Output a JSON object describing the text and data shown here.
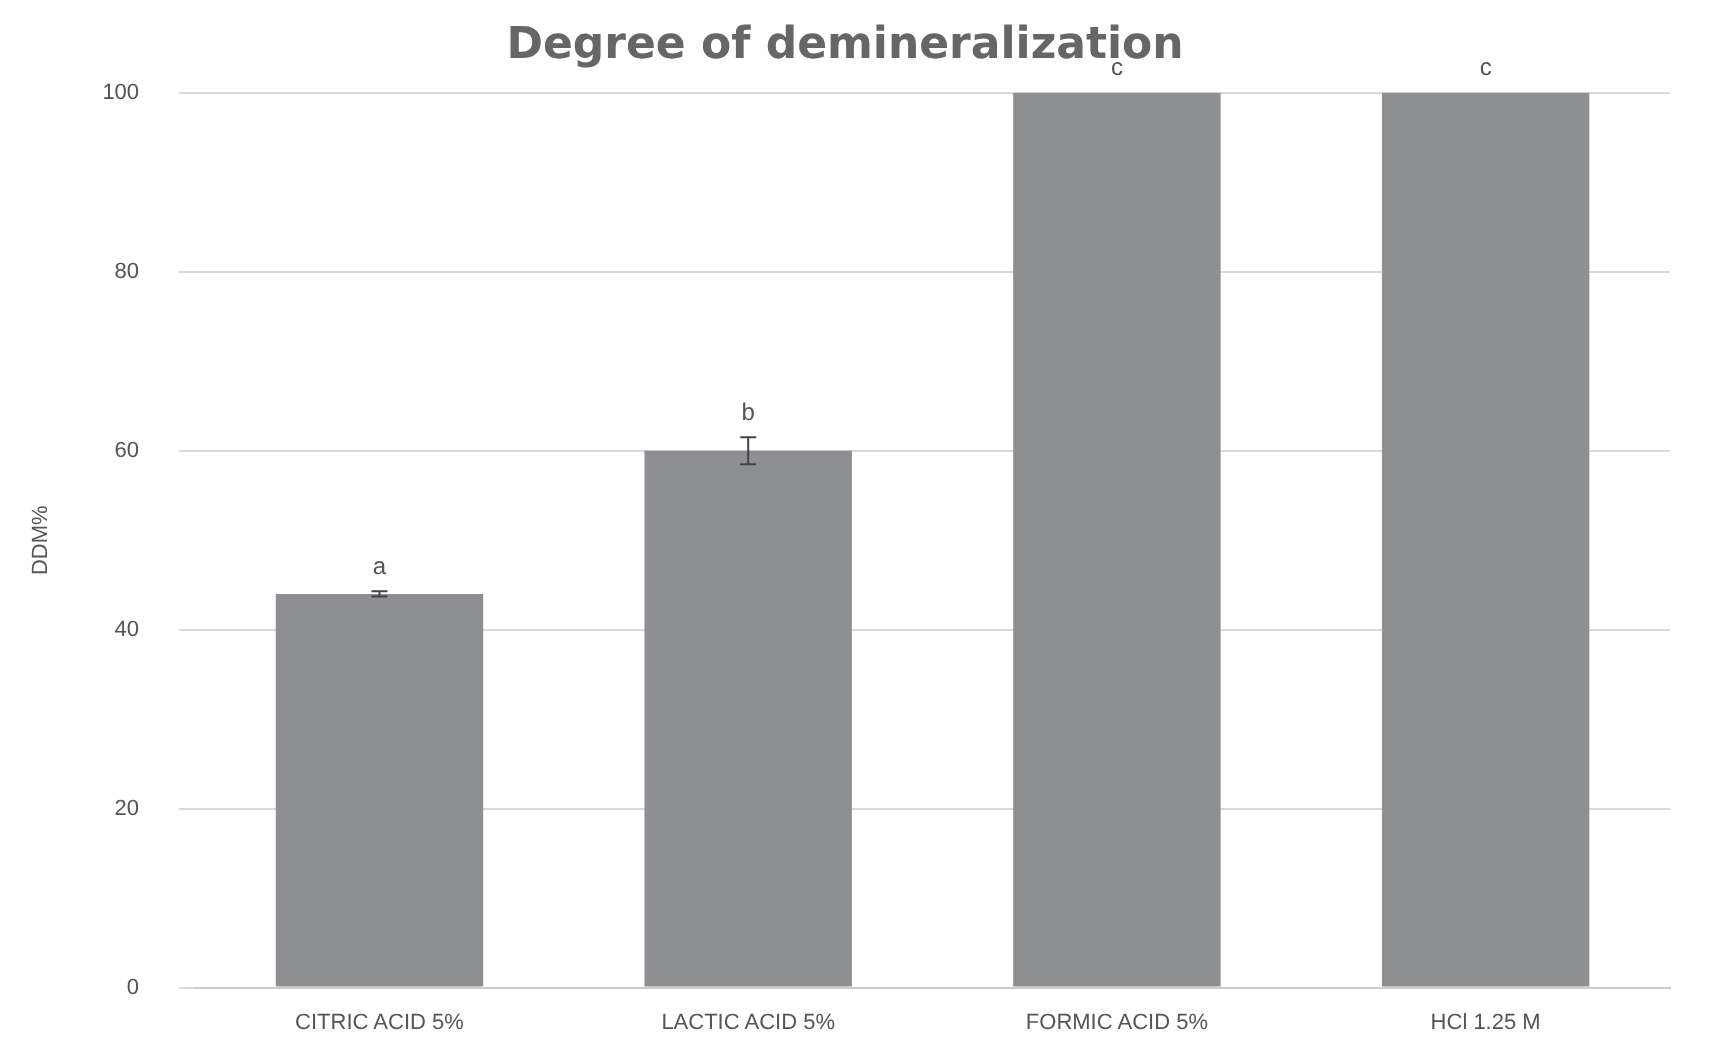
{
  "chart_data": {
    "type": "bar",
    "title": "Degree of demineralization",
    "ylabel": "DDM%",
    "categories": [
      "CITRIC ACID 5%",
      "LACTIC ACID 5%",
      "FORMIC ACID 5%",
      "HCl 1.25 M"
    ],
    "values": [
      44,
      60,
      100,
      100
    ],
    "errors": [
      0.3,
      1.5,
      null,
      null
    ],
    "color": "#8e8f93",
    "ylim": [
      0,
      100
    ],
    "yticks": [
      0,
      20,
      40,
      60,
      80,
      100
    ],
    "grid": "y",
    "legend": false,
    "annotations": [
      {
        "text": "a",
        "x": "CITRIC ACID 5%",
        "y": 44
      },
      {
        "text": "b",
        "x": "LACTIC ACID 5%",
        "y": 60
      },
      {
        "text": "c",
        "x": "FORMIC ACID 5%",
        "y": 100
      },
      {
        "text": "c",
        "x": "HCl 1.25 M",
        "y": 100
      }
    ]
  }
}
